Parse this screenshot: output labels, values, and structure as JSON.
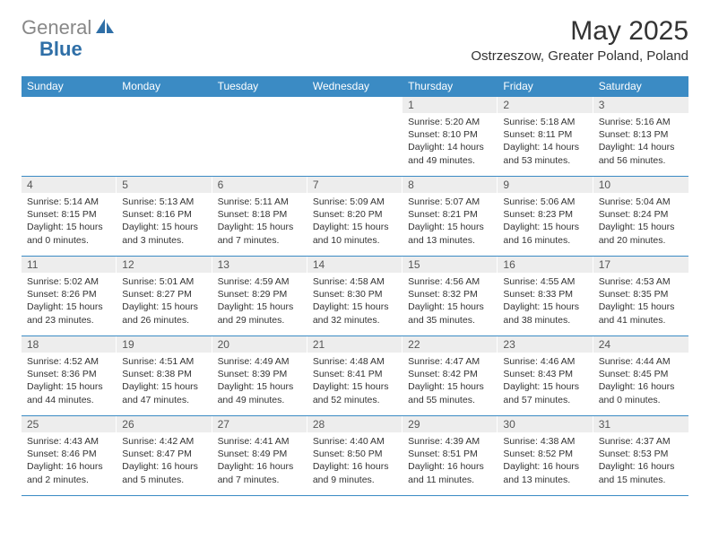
{
  "logo": {
    "text_gray": "General",
    "text_blue": "Blue",
    "sail_color": "#2f6fa7"
  },
  "title": "May 2025",
  "location": "Ostrzeszow, Greater Poland, Poland",
  "colors": {
    "header_bg": "#3b8bc4",
    "header_text": "#ffffff",
    "daynum_bg": "#ededed",
    "border": "#3b8bc4"
  },
  "weekdays": [
    "Sunday",
    "Monday",
    "Tuesday",
    "Wednesday",
    "Thursday",
    "Friday",
    "Saturday"
  ],
  "weeks": [
    [
      {
        "n": "",
        "sr": "",
        "ss": "",
        "dl": ""
      },
      {
        "n": "",
        "sr": "",
        "ss": "",
        "dl": ""
      },
      {
        "n": "",
        "sr": "",
        "ss": "",
        "dl": ""
      },
      {
        "n": "",
        "sr": "",
        "ss": "",
        "dl": ""
      },
      {
        "n": "1",
        "sr": "Sunrise: 5:20 AM",
        "ss": "Sunset: 8:10 PM",
        "dl": "Daylight: 14 hours and 49 minutes."
      },
      {
        "n": "2",
        "sr": "Sunrise: 5:18 AM",
        "ss": "Sunset: 8:11 PM",
        "dl": "Daylight: 14 hours and 53 minutes."
      },
      {
        "n": "3",
        "sr": "Sunrise: 5:16 AM",
        "ss": "Sunset: 8:13 PM",
        "dl": "Daylight: 14 hours and 56 minutes."
      }
    ],
    [
      {
        "n": "4",
        "sr": "Sunrise: 5:14 AM",
        "ss": "Sunset: 8:15 PM",
        "dl": "Daylight: 15 hours and 0 minutes."
      },
      {
        "n": "5",
        "sr": "Sunrise: 5:13 AM",
        "ss": "Sunset: 8:16 PM",
        "dl": "Daylight: 15 hours and 3 minutes."
      },
      {
        "n": "6",
        "sr": "Sunrise: 5:11 AM",
        "ss": "Sunset: 8:18 PM",
        "dl": "Daylight: 15 hours and 7 minutes."
      },
      {
        "n": "7",
        "sr": "Sunrise: 5:09 AM",
        "ss": "Sunset: 8:20 PM",
        "dl": "Daylight: 15 hours and 10 minutes."
      },
      {
        "n": "8",
        "sr": "Sunrise: 5:07 AM",
        "ss": "Sunset: 8:21 PM",
        "dl": "Daylight: 15 hours and 13 minutes."
      },
      {
        "n": "9",
        "sr": "Sunrise: 5:06 AM",
        "ss": "Sunset: 8:23 PM",
        "dl": "Daylight: 15 hours and 16 minutes."
      },
      {
        "n": "10",
        "sr": "Sunrise: 5:04 AM",
        "ss": "Sunset: 8:24 PM",
        "dl": "Daylight: 15 hours and 20 minutes."
      }
    ],
    [
      {
        "n": "11",
        "sr": "Sunrise: 5:02 AM",
        "ss": "Sunset: 8:26 PM",
        "dl": "Daylight: 15 hours and 23 minutes."
      },
      {
        "n": "12",
        "sr": "Sunrise: 5:01 AM",
        "ss": "Sunset: 8:27 PM",
        "dl": "Daylight: 15 hours and 26 minutes."
      },
      {
        "n": "13",
        "sr": "Sunrise: 4:59 AM",
        "ss": "Sunset: 8:29 PM",
        "dl": "Daylight: 15 hours and 29 minutes."
      },
      {
        "n": "14",
        "sr": "Sunrise: 4:58 AM",
        "ss": "Sunset: 8:30 PM",
        "dl": "Daylight: 15 hours and 32 minutes."
      },
      {
        "n": "15",
        "sr": "Sunrise: 4:56 AM",
        "ss": "Sunset: 8:32 PM",
        "dl": "Daylight: 15 hours and 35 minutes."
      },
      {
        "n": "16",
        "sr": "Sunrise: 4:55 AM",
        "ss": "Sunset: 8:33 PM",
        "dl": "Daylight: 15 hours and 38 minutes."
      },
      {
        "n": "17",
        "sr": "Sunrise: 4:53 AM",
        "ss": "Sunset: 8:35 PM",
        "dl": "Daylight: 15 hours and 41 minutes."
      }
    ],
    [
      {
        "n": "18",
        "sr": "Sunrise: 4:52 AM",
        "ss": "Sunset: 8:36 PM",
        "dl": "Daylight: 15 hours and 44 minutes."
      },
      {
        "n": "19",
        "sr": "Sunrise: 4:51 AM",
        "ss": "Sunset: 8:38 PM",
        "dl": "Daylight: 15 hours and 47 minutes."
      },
      {
        "n": "20",
        "sr": "Sunrise: 4:49 AM",
        "ss": "Sunset: 8:39 PM",
        "dl": "Daylight: 15 hours and 49 minutes."
      },
      {
        "n": "21",
        "sr": "Sunrise: 4:48 AM",
        "ss": "Sunset: 8:41 PM",
        "dl": "Daylight: 15 hours and 52 minutes."
      },
      {
        "n": "22",
        "sr": "Sunrise: 4:47 AM",
        "ss": "Sunset: 8:42 PM",
        "dl": "Daylight: 15 hours and 55 minutes."
      },
      {
        "n": "23",
        "sr": "Sunrise: 4:46 AM",
        "ss": "Sunset: 8:43 PM",
        "dl": "Daylight: 15 hours and 57 minutes."
      },
      {
        "n": "24",
        "sr": "Sunrise: 4:44 AM",
        "ss": "Sunset: 8:45 PM",
        "dl": "Daylight: 16 hours and 0 minutes."
      }
    ],
    [
      {
        "n": "25",
        "sr": "Sunrise: 4:43 AM",
        "ss": "Sunset: 8:46 PM",
        "dl": "Daylight: 16 hours and 2 minutes."
      },
      {
        "n": "26",
        "sr": "Sunrise: 4:42 AM",
        "ss": "Sunset: 8:47 PM",
        "dl": "Daylight: 16 hours and 5 minutes."
      },
      {
        "n": "27",
        "sr": "Sunrise: 4:41 AM",
        "ss": "Sunset: 8:49 PM",
        "dl": "Daylight: 16 hours and 7 minutes."
      },
      {
        "n": "28",
        "sr": "Sunrise: 4:40 AM",
        "ss": "Sunset: 8:50 PM",
        "dl": "Daylight: 16 hours and 9 minutes."
      },
      {
        "n": "29",
        "sr": "Sunrise: 4:39 AM",
        "ss": "Sunset: 8:51 PM",
        "dl": "Daylight: 16 hours and 11 minutes."
      },
      {
        "n": "30",
        "sr": "Sunrise: 4:38 AM",
        "ss": "Sunset: 8:52 PM",
        "dl": "Daylight: 16 hours and 13 minutes."
      },
      {
        "n": "31",
        "sr": "Sunrise: 4:37 AM",
        "ss": "Sunset: 8:53 PM",
        "dl": "Daylight: 16 hours and 15 minutes."
      }
    ]
  ]
}
